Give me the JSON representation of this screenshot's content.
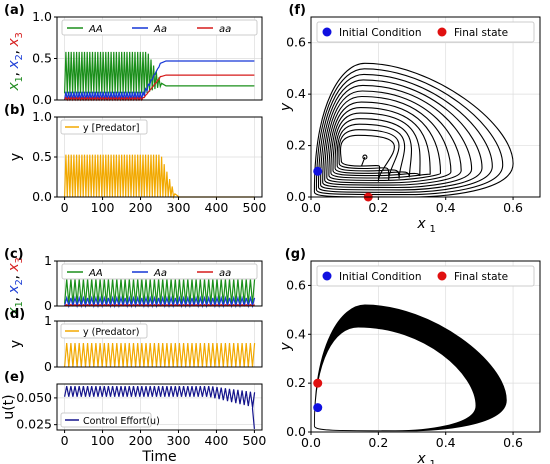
{
  "chart_data": [
    {
      "panel": "(a)",
      "type": "line",
      "ylabel_parts": [
        {
          "text": "x",
          "sub": "1",
          "color": "#1f8a1f"
        },
        {
          "text": "x",
          "sub": "2",
          "color": "#1f3fd6"
        },
        {
          "text": "x",
          "sub": "3",
          "color": "#d61f1f"
        }
      ],
      "xlim": [
        -20,
        520
      ],
      "ylim": [
        0,
        1
      ],
      "yticks": [
        "0.0",
        "0.5",
        "1.0"
      ],
      "legend": {
        "placement": "top",
        "entries": [
          {
            "label": "AA",
            "color": "#1a8f1a"
          },
          {
            "label": "Aa",
            "color": "#1436d6"
          },
          {
            "label": "aa",
            "color": "#d61a1a"
          }
        ]
      },
      "series": [
        {
          "name": "AA",
          "color": "#1a8f1a",
          "oscillation": {
            "t_end": 255,
            "period": 7,
            "hi": 0.58,
            "lo": 0.08
          },
          "steady": 0.17
        },
        {
          "name": "Aa",
          "color": "#1436d6",
          "oscillation": {
            "t_end": 255,
            "period": 7,
            "hi": 0.1,
            "lo": 0.0
          },
          "steady": 0.47
        },
        {
          "name": "aa",
          "color": "#d61a1a",
          "oscillation": {
            "t_end": 255,
            "period": 7,
            "hi": 0.03,
            "lo": 0.0
          },
          "steady": 0.3
        }
      ]
    },
    {
      "panel": "(b)",
      "type": "line",
      "ylabel": "y",
      "xlim": [
        -20,
        520
      ],
      "ylim": [
        0,
        1
      ],
      "yticks": [
        "0.0",
        "0.5",
        "1.0"
      ],
      "xticks": [
        "0",
        "100",
        "200",
        "300",
        "400",
        "500"
      ],
      "legend": {
        "placement": "top-left",
        "entries": [
          {
            "label": "y [Predator]",
            "color": "#f2a900"
          }
        ]
      },
      "series": [
        {
          "name": "y [Predator]",
          "color": "#f2a900",
          "oscillation": {
            "t_end": 290,
            "period": 7,
            "hi": 0.53,
            "lo": 0.0
          },
          "steady": 0.0
        }
      ]
    },
    {
      "panel": "(c)",
      "type": "line",
      "ylabel_parts": [
        {
          "text": "x",
          "sub": "1",
          "color": "#1f8a1f"
        },
        {
          "text": "x",
          "sub": "2",
          "color": "#1f3fd6"
        },
        {
          "text": "x",
          "sub": "3",
          "color": "#d61f1f"
        }
      ],
      "xlim": [
        -20,
        520
      ],
      "ylim": [
        0,
        1
      ],
      "yticks": [
        "0",
        "1"
      ],
      "legend": {
        "placement": "top",
        "entries": [
          {
            "label": "AA",
            "color": "#1a8f1a"
          },
          {
            "label": "Aa",
            "color": "#1436d6"
          },
          {
            "label": "aa",
            "color": "#d61a1a"
          }
        ]
      },
      "series": [
        {
          "name": "AA",
          "color": "#1a8f1a",
          "oscillation": {
            "t_end": 500,
            "period": 11,
            "hi": 0.6,
            "lo": 0.05
          }
        },
        {
          "name": "Aa",
          "color": "#1436d6",
          "oscillation": {
            "t_end": 500,
            "period": 11,
            "hi": 0.18,
            "lo": 0.0
          }
        },
        {
          "name": "aa",
          "color": "#d61a1a",
          "oscillation": {
            "t_end": 500,
            "period": 11,
            "hi": 0.03,
            "lo": 0.0
          }
        }
      ]
    },
    {
      "panel": "(d)",
      "type": "line",
      "ylabel": "y",
      "xlim": [
        -20,
        520
      ],
      "ylim": [
        0,
        1
      ],
      "yticks": [
        "0",
        "1"
      ],
      "legend": {
        "placement": "top-left",
        "entries": [
          {
            "label": "y (Predator)",
            "color": "#f2a900"
          }
        ]
      },
      "series": [
        {
          "name": "y (Predator)",
          "color": "#f2a900",
          "oscillation": {
            "t_end": 500,
            "period": 11,
            "hi": 0.52,
            "lo": 0.0
          }
        }
      ]
    },
    {
      "panel": "(e)",
      "type": "line",
      "ylabel": "u(t)",
      "xlabel": "Time",
      "xlim": [
        -20,
        520
      ],
      "ylim": [
        0.02,
        0.063
      ],
      "yticks": [
        "0.025",
        "0.050"
      ],
      "ytick_values": [
        0.025,
        0.05
      ],
      "xticks": [
        "0",
        "100",
        "200",
        "300",
        "400",
        "500"
      ],
      "legend": {
        "placement": "bottom-left",
        "entries": [
          {
            "label": "Control Effort(u)",
            "color": "#14148c"
          }
        ]
      },
      "series": [
        {
          "name": "Control Effort(u)",
          "color": "#14148c",
          "oscillation": {
            "t_end": 500,
            "period": 11,
            "hi": 0.061,
            "lo": 0.051
          }
        }
      ]
    },
    {
      "panel": "(f)",
      "type": "scatter",
      "xlabel_base": "x",
      "xlabel_sub": "1",
      "ylabel": "y",
      "xlim": [
        0,
        0.68
      ],
      "ylim": [
        0,
        0.7
      ],
      "xticks": [
        "0.0",
        "0.2",
        "0.4",
        "0.6"
      ],
      "xtick_values": [
        0,
        0.2,
        0.4,
        0.6
      ],
      "yticks": [
        "0.0",
        "0.2",
        "0.4",
        "0.6"
      ],
      "ytick_values": [
        0,
        0.2,
        0.4,
        0.6
      ],
      "legend": {
        "placement": "top",
        "entries": [
          {
            "label": "Initial Condition",
            "color": "#1010e0"
          },
          {
            "label": "Final state",
            "color": "#e01010"
          }
        ]
      },
      "points": [
        {
          "name": "Initial Condition",
          "x": 0.02,
          "y": 0.1,
          "color": "#1010e0"
        },
        {
          "name": "Final state",
          "x": 0.17,
          "y": 0.0,
          "color": "#e01010"
        }
      ],
      "trajectory": {
        "type": "spiral-in",
        "center": [
          0.15,
          0.15
        ],
        "outer_x": [
          0.01,
          0.6
        ],
        "outer_y": [
          0.0,
          0.52
        ],
        "loops": 14
      }
    },
    {
      "panel": "(g)",
      "type": "scatter",
      "xlabel_base": "x",
      "xlabel_sub": "1",
      "ylabel": "y",
      "xlim": [
        0,
        0.68
      ],
      "ylim": [
        0,
        0.7
      ],
      "xticks": [
        "0.0",
        "0.2",
        "0.4",
        "0.6"
      ],
      "xtick_values": [
        0,
        0.2,
        0.4,
        0.6
      ],
      "yticks": [
        "0.0",
        "0.2",
        "0.4",
        "0.6"
      ],
      "ytick_values": [
        0,
        0.2,
        0.4,
        0.6
      ],
      "legend": {
        "placement": "top",
        "entries": [
          {
            "label": "Initial Condition",
            "color": "#1010e0"
          },
          {
            "label": "Final state",
            "color": "#e01010"
          }
        ]
      },
      "points": [
        {
          "name": "Initial Condition",
          "x": 0.02,
          "y": 0.1,
          "color": "#1010e0"
        },
        {
          "name": "Final state",
          "x": 0.02,
          "y": 0.2,
          "color": "#e01010"
        }
      ],
      "trajectory": {
        "type": "limit-cycle-band",
        "outer_x": [
          0.01,
          0.58
        ],
        "outer_y": [
          0.0,
          0.52
        ],
        "inner_x_max": 0.49,
        "inner_y_max": 0.43,
        "loops": 40
      }
    }
  ]
}
